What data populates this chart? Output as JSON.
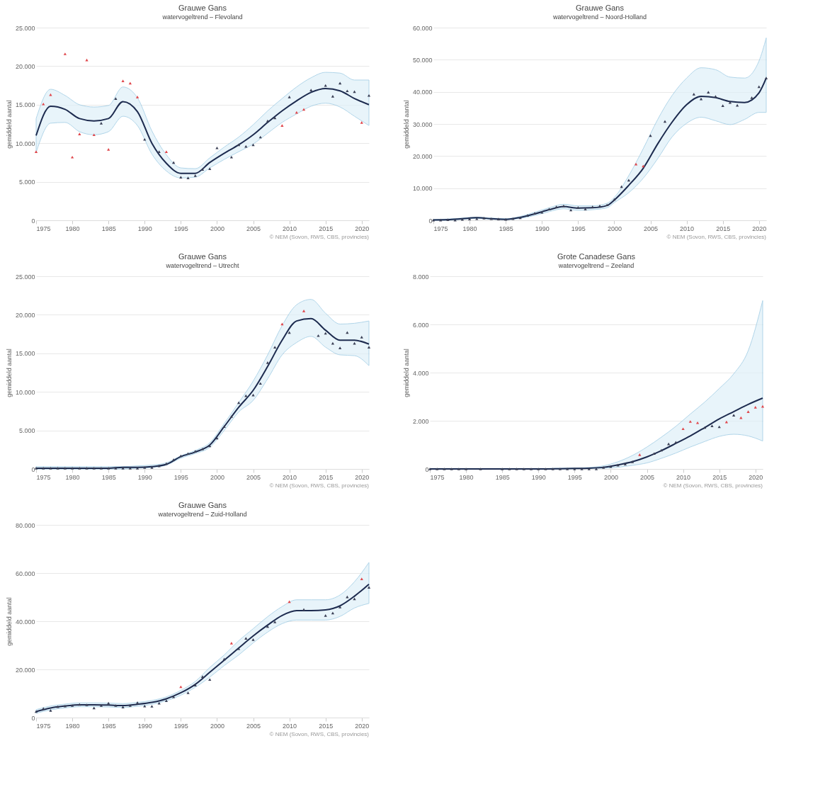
{
  "chart_data": [
    {
      "type": "line",
      "title": "Grauwe Gans",
      "subtitle": "watervogeltrend – Flevoland",
      "ylabel": "gemiddeld aantal",
      "annotations": [
        "© NEM (Sovon, RWS, CBS, provincies)"
      ],
      "grid": "y",
      "x": [
        1975,
        1976,
        1977,
        1978,
        1979,
        1980,
        1981,
        1982,
        1983,
        1984,
        1985,
        1986,
        1987,
        1988,
        1989,
        1990,
        1991,
        1992,
        1993,
        1994,
        1995,
        1996,
        1997,
        1998,
        1999,
        2000,
        2001,
        2002,
        2003,
        2004,
        2005,
        2006,
        2007,
        2008,
        2009,
        2010,
        2011,
        2012,
        2013,
        2014,
        2015,
        2016,
        2017,
        2018,
        2019,
        2020,
        2021
      ],
      "xlim": [
        1975,
        2021
      ],
      "xticks": [
        1975,
        1980,
        1985,
        1990,
        1995,
        2000,
        2005,
        2010,
        2015,
        2020
      ],
      "ylim": [
        0,
        25000
      ],
      "yticks": [
        0,
        {
          "value": 5000,
          "label": "5.000"
        },
        {
          "value": 10000,
          "label": "10.000"
        },
        {
          "value": 15000,
          "label": "15.000"
        },
        {
          "value": 20000,
          "label": "20.000"
        },
        {
          "value": 25000,
          "label": "25.000"
        }
      ],
      "series": [
        {
          "color": "#1d2b4f",
          "x": [
            1975,
            1977,
            1979,
            1981,
            1983,
            1985,
            1987,
            1989,
            1991,
            1993,
            1995,
            1997,
            1999,
            2001,
            2003,
            2005,
            2007,
            2009,
            2011,
            2013,
            2015,
            2017,
            2019,
            2021
          ],
          "values": [
            11000,
            14800,
            14400,
            13200,
            12900,
            13200,
            15400,
            14100,
            10000,
            7400,
            6100,
            6100,
            7500,
            8700,
            9800,
            11100,
            12700,
            14200,
            15500,
            16600,
            17100,
            16800,
            15800,
            15000
          ],
          "upper": [
            13200,
            17000,
            16200,
            15000,
            14700,
            14900,
            17300,
            15900,
            11600,
            8500,
            6800,
            6700,
            8100,
            9500,
            10800,
            12400,
            14200,
            15800,
            17300,
            18500,
            19200,
            19100,
            18200,
            18200
          ],
          "lower": [
            8800,
            12600,
            12700,
            11500,
            11100,
            11500,
            13500,
            12300,
            8600,
            6400,
            5500,
            5600,
            6800,
            7900,
            8900,
            9900,
            11300,
            12700,
            13800,
            14800,
            15200,
            14700,
            13500,
            12300
          ]
        },
        {
          "type": "scatter",
          "marker": "triangle",
          "values": [
            8900,
            15100,
            16300,
            null,
            21600,
            8200,
            11200,
            20800,
            11100,
            12600,
            9200,
            15800,
            18100,
            17800,
            16000,
            10500,
            null,
            8900,
            8900,
            7500,
            5600,
            5500,
            5800,
            6600,
            6700,
            9400,
            null,
            8200,
            9800,
            9600,
            9800,
            10800,
            12900,
            13300,
            12300,
            16000,
            14000,
            14400,
            16900,
            null,
            17500,
            16100,
            17800,
            16800,
            16700,
            12700,
            16200
          ],
          "colors": [
            "#e0474c",
            "#e0474c",
            "#e0474c",
            "#3a3f55",
            "#e0474c",
            "#e0474c",
            "#e0474c",
            "#e0474c",
            "#e0474c",
            "#3a3f55",
            "#e0474c",
            "#3a3f55",
            "#e0474c",
            "#e0474c",
            "#e0474c",
            "#3a3f55",
            "#3a3f55",
            "#3a3f55",
            "#e0474c",
            "#3a3f55",
            "#3a3f55",
            "#3a3f55",
            "#3a3f55",
            "#3a3f55",
            "#3a3f55",
            "#3a3f55",
            "#3a3f55",
            "#3a3f55",
            "#3a3f55",
            "#3a3f55",
            "#3a3f55",
            "#3a3f55",
            "#3a3f55",
            "#3a3f55",
            "#e0474c",
            "#3a3f55",
            "#e0474c",
            "#e0474c",
            "#3a3f55",
            "#3a3f55",
            "#3a3f55",
            "#3a3f55",
            "#3a3f55",
            "#3a3f55",
            "#3a3f55",
            "#e0474c",
            "#3a3f55"
          ]
        }
      ]
    },
    {
      "type": "line",
      "title": "Grauwe Gans",
      "subtitle": "watervogeltrend – Noord-Holland",
      "ylabel": "gemiddeld aantal",
      "annotations": [
        "© NEM (Sovon, RWS, CBS, provincies)"
      ],
      "grid": "y",
      "x": [
        1975,
        1976,
        1977,
        1978,
        1979,
        1980,
        1981,
        1982,
        1983,
        1984,
        1985,
        1986,
        1987,
        1988,
        1989,
        1990,
        1991,
        1992,
        1993,
        1994,
        1995,
        1996,
        1997,
        1998,
        1999,
        2000,
        2001,
        2002,
        2003,
        2004,
        2005,
        2006,
        2007,
        2008,
        2009,
        2010,
        2011,
        2012,
        2013,
        2014,
        2015,
        2016,
        2017,
        2018,
        2019,
        2020,
        2021
      ],
      "xlim": [
        1975,
        2021
      ],
      "xticks": [
        1975,
        1980,
        1985,
        1990,
        1995,
        2000,
        2005,
        2010,
        2015,
        2020
      ],
      "ylim": [
        0,
        60000
      ],
      "yticks": [
        0,
        {
          "value": 10000,
          "label": "10.000"
        },
        {
          "value": 20000,
          "label": "20.000"
        },
        {
          "value": 30000,
          "label": "30.000"
        },
        {
          "value": 40000,
          "label": "40.000"
        },
        {
          "value": 50000,
          "label": "50.000"
        },
        {
          "value": 60000,
          "label": "60.000"
        }
      ],
      "series": [
        {
          "color": "#1d2b4f",
          "x": [
            1975,
            1977,
            1979,
            1981,
            1983,
            1985,
            1987,
            1989,
            1991,
            1993,
            1995,
            1997,
            1999,
            2000,
            2002,
            2004,
            2006,
            2008,
            2010,
            2012,
            2014,
            2016,
            2018,
            2020,
            2021
          ],
          "values": [
            100,
            200,
            500,
            800,
            500,
            300,
            900,
            2000,
            3300,
            4300,
            3800,
            3900,
            4600,
            6300,
            10900,
            16200,
            23800,
            30600,
            36000,
            38600,
            38200,
            37000,
            36700,
            39700,
            44300
          ],
          "upper": [
            300,
            400,
            700,
            1000,
            700,
            500,
            1200,
            2500,
            3900,
            5000,
            4500,
            4500,
            5300,
            7100,
            13900,
            22300,
            31400,
            38900,
            44300,
            47500,
            46900,
            44600,
            44300,
            49600,
            56800
          ],
          "lower": [
            0,
            0,
            300,
            600,
            300,
            200,
            600,
            1500,
            2700,
            3600,
            3100,
            3300,
            3900,
            5500,
            8600,
            13100,
            19200,
            26000,
            30200,
            32100,
            31000,
            29800,
            31400,
            33600,
            33600
          ]
        },
        {
          "type": "scatter",
          "marker": "triangle",
          "values": [
            100,
            100,
            200,
            100,
            300,
            400,
            500,
            700,
            500,
            400,
            300,
            500,
            800,
            1500,
            2200,
            2500,
            3500,
            4200,
            4500,
            3200,
            4000,
            3500,
            4200,
            4500,
            4800,
            6500,
            10500,
            12500,
            17500,
            16900,
            26400,
            null,
            30800,
            null,
            null,
            null,
            39300,
            37800,
            39900,
            38600,
            35700,
            36700,
            35800,
            null,
            38200,
            41600,
            44300
          ],
          "colors": [
            "#3a3f55",
            "#3a3f55",
            "#3a3f55",
            "#3a3f55",
            "#3a3f55",
            "#3a3f55",
            "#3a3f55",
            "#3a3f55",
            "#3a3f55",
            "#3a3f55",
            "#3a3f55",
            "#3a3f55",
            "#3a3f55",
            "#3a3f55",
            "#3a3f55",
            "#3a3f55",
            "#3a3f55",
            "#3a3f55",
            "#3a3f55",
            "#3a3f55",
            "#3a3f55",
            "#3a3f55",
            "#3a3f55",
            "#3a3f55",
            "#3a3f55",
            "#3a3f55",
            "#3a3f55",
            "#3a3f55",
            "#e0474c",
            "#e0474c",
            "#3a3f55",
            "#3a3f55",
            "#3a3f55",
            "#3a3f55",
            "#3a3f55",
            "#3a3f55",
            "#3a3f55",
            "#3a3f55",
            "#3a3f55",
            "#3a3f55",
            "#3a3f55",
            "#3a3f55",
            "#3a3f55",
            "#3a3f55",
            "#3a3f55",
            "#3a3f55",
            "#3a3f55"
          ]
        }
      ]
    },
    {
      "type": "line",
      "title": "Grauwe Gans",
      "subtitle": "watervogeltrend – Utrecht",
      "ylabel": "gemiddeld aantal",
      "annotations": [
        "© NEM (Sovon, RWS, CBS, provincies)"
      ],
      "grid": "y",
      "x": [
        1975,
        1976,
        1977,
        1978,
        1979,
        1980,
        1981,
        1982,
        1983,
        1984,
        1985,
        1986,
        1987,
        1988,
        1989,
        1990,
        1991,
        1992,
        1993,
        1994,
        1995,
        1996,
        1997,
        1998,
        1999,
        2000,
        2001,
        2002,
        2003,
        2004,
        2005,
        2006,
        2007,
        2008,
        2009,
        2010,
        2011,
        2012,
        2013,
        2014,
        2015,
        2016,
        2017,
        2018,
        2019,
        2020,
        2021
      ],
      "xlim": [
        1975,
        2021
      ],
      "xticks": [
        1975,
        1980,
        1985,
        1990,
        1995,
        2000,
        2005,
        2010,
        2015,
        2020
      ],
      "ylim": [
        0,
        25000
      ],
      "yticks": [
        0,
        {
          "value": 5000,
          "label": "5.000"
        },
        {
          "value": 10000,
          "label": "10.000"
        },
        {
          "value": 15000,
          "label": "15.000"
        },
        {
          "value": 20000,
          "label": "20.000"
        },
        {
          "value": 25000,
          "label": "25.000"
        }
      ],
      "series": [
        {
          "color": "#1d2b4f",
          "x": [
            1975,
            1977,
            1979,
            1981,
            1983,
            1985,
            1987,
            1989,
            1991,
            1993,
            1995,
            1997,
            1999,
            2001,
            2003,
            2005,
            2007,
            2009,
            2011,
            2013,
            2015,
            2017,
            2019,
            2021
          ],
          "values": [
            100,
            100,
            100,
            100,
            100,
            100,
            200,
            200,
            300,
            600,
            1600,
            2200,
            3100,
            5500,
            8000,
            10200,
            13300,
            16700,
            19200,
            19500,
            18000,
            16700,
            16700,
            16200
          ],
          "upper": [
            300,
            300,
            300,
            300,
            300,
            300,
            300,
            400,
            500,
            800,
            1700,
            2400,
            3400,
            5900,
            8600,
            11400,
            14800,
            18600,
            21300,
            22000,
            20200,
            18800,
            18900,
            19200
          ],
          "lower": [
            0,
            0,
            0,
            0,
            0,
            0,
            0,
            100,
            200,
            500,
            1400,
            2000,
            2800,
            5000,
            7400,
            8900,
            11700,
            14800,
            16400,
            17200,
            15800,
            14800,
            14700,
            13400
          ]
        },
        {
          "type": "scatter",
          "marker": "triangle",
          "values": [
            100,
            100,
            100,
            100,
            100,
            100,
            100,
            100,
            100,
            100,
            100,
            100,
            100,
            100,
            100,
            200,
            200,
            400,
            700,
            1200,
            1700,
            2000,
            2300,
            2600,
            3000,
            4000,
            5500,
            6800,
            8600,
            9500,
            9600,
            11100,
            13800,
            15800,
            18800,
            17700,
            null,
            20500,
            null,
            17300,
            17600,
            16300,
            15700,
            17700,
            16300,
            17100,
            15800
          ],
          "colors": [
            "#3a3f55",
            "#3a3f55",
            "#3a3f55",
            "#3a3f55",
            "#3a3f55",
            "#3a3f55",
            "#3a3f55",
            "#3a3f55",
            "#3a3f55",
            "#3a3f55",
            "#3a3f55",
            "#3a3f55",
            "#3a3f55",
            "#3a3f55",
            "#3a3f55",
            "#3a3f55",
            "#3a3f55",
            "#3a3f55",
            "#3a3f55",
            "#3a3f55",
            "#3a3f55",
            "#3a3f55",
            "#3a3f55",
            "#3a3f55",
            "#3a3f55",
            "#3a3f55",
            "#3a3f55",
            "#3a3f55",
            "#3a3f55",
            "#3a3f55",
            "#3a3f55",
            "#3a3f55",
            "#3a3f55",
            "#3a3f55",
            "#e0474c",
            "#3a3f55",
            "#3a3f55",
            "#e0474c",
            "#3a3f55",
            "#3a3f55",
            "#3a3f55",
            "#3a3f55",
            "#3a3f55",
            "#3a3f55",
            "#3a3f55",
            "#3a3f55",
            "#3a3f55"
          ]
        }
      ]
    },
    {
      "type": "line",
      "title": "Grote Canadese Gans",
      "subtitle": "watervogeltrend – Zeeland",
      "ylabel": "gemiddeld aantal",
      "annotations": [
        "© NEM (Sovon, RWS, CBS, provincies)"
      ],
      "grid": "y",
      "x": [
        1975,
        1976,
        1977,
        1978,
        1979,
        1980,
        1981,
        1982,
        1983,
        1984,
        1985,
        1986,
        1987,
        1988,
        1989,
        1990,
        1991,
        1992,
        1993,
        1994,
        1995,
        1996,
        1997,
        1998,
        1999,
        2000,
        2001,
        2002,
        2003,
        2004,
        2005,
        2006,
        2007,
        2008,
        2009,
        2010,
        2011,
        2012,
        2013,
        2014,
        2015,
        2016,
        2017,
        2018,
        2019,
        2020,
        2021
      ],
      "xlim": [
        1975,
        2021
      ],
      "xticks": [
        1975,
        1980,
        1985,
        1990,
        1995,
        2000,
        2005,
        2010,
        2015,
        2020
      ],
      "ylim": [
        0,
        8000
      ],
      "yticks": [
        0,
        {
          "value": 2000,
          "label": "2.000"
        },
        {
          "value": 4000,
          "label": "4.000"
        },
        {
          "value": 6000,
          "label": "6.000"
        },
        {
          "value": 8000,
          "label": "8.000"
        }
      ],
      "series": [
        {
          "color": "#1d2b4f",
          "x": [
            1975,
            1977,
            1979,
            1981,
            1983,
            1985,
            1987,
            1989,
            1991,
            1993,
            1995,
            1997,
            1999,
            2001,
            2003,
            2005,
            2007,
            2009,
            2011,
            2013,
            2015,
            2017,
            2019,
            2021
          ],
          "values": [
            0,
            0,
            0,
            0,
            0,
            0,
            0,
            0,
            0,
            10,
            20,
            30,
            70,
            170,
            300,
            500,
            760,
            1060,
            1370,
            1720,
            2080,
            2380,
            2680,
            2940
          ],
          "upper": [
            20,
            20,
            20,
            20,
            20,
            20,
            20,
            20,
            20,
            30,
            40,
            60,
            130,
            300,
            560,
            910,
            1320,
            1770,
            2280,
            2780,
            3340,
            3950,
            4910,
            6990
          ],
          "lower": [
            0,
            0,
            0,
            0,
            0,
            0,
            0,
            0,
            0,
            0,
            10,
            20,
            30,
            70,
            150,
            250,
            440,
            660,
            910,
            1140,
            1350,
            1440,
            1370,
            1160
          ]
        },
        {
          "type": "scatter",
          "marker": "triangle",
          "values": [
            0,
            0,
            0,
            0,
            0,
            0,
            null,
            0,
            null,
            null,
            0,
            0,
            0,
            0,
            0,
            0,
            0,
            0,
            0,
            0,
            0,
            0,
            0,
            0,
            60,
            100,
            160,
            200,
            300,
            590,
            null,
            640,
            780,
            1040,
            1110,
            1670,
            1970,
            1920,
            1720,
            1790,
            1750,
            1950,
            2230,
            2130,
            2380,
            2560,
            2600
          ],
          "colors": [
            "#3a3f55",
            "#3a3f55",
            "#3a3f55",
            "#3a3f55",
            "#3a3f55",
            "#3a3f55",
            "#3a3f55",
            "#3a3f55",
            "#3a3f55",
            "#3a3f55",
            "#3a3f55",
            "#3a3f55",
            "#3a3f55",
            "#3a3f55",
            "#3a3f55",
            "#3a3f55",
            "#3a3f55",
            "#3a3f55",
            "#3a3f55",
            "#3a3f55",
            "#3a3f55",
            "#3a3f55",
            "#3a3f55",
            "#3a3f55",
            "#3a3f55",
            "#3a3f55",
            "#3a3f55",
            "#3a3f55",
            "#3a3f55",
            "#e0474c",
            "#3a3f55",
            "#3a3f55",
            "#3a3f55",
            "#3a3f55",
            "#3a3f55",
            "#e0474c",
            "#e0474c",
            "#e0474c",
            "#3a3f55",
            "#3a3f55",
            "#3a3f55",
            "#e0474c",
            "#3a3f55",
            "#e0474c",
            "#e0474c",
            "#e0474c",
            "#e0474c"
          ]
        }
      ]
    },
    {
      "type": "line",
      "title": "Grauwe Gans",
      "subtitle": "watervogeltrend – Zuid-Holland",
      "ylabel": "gemiddeld aantal",
      "annotations": [
        "© NEM (Sovon, RWS, CBS, provincies)"
      ],
      "grid": "y",
      "x": [
        1975,
        1976,
        1977,
        1978,
        1979,
        1980,
        1981,
        1982,
        1983,
        1984,
        1985,
        1986,
        1987,
        1988,
        1989,
        1990,
        1991,
        1992,
        1993,
        1994,
        1995,
        1996,
        1997,
        1998,
        1999,
        2000,
        2001,
        2002,
        2003,
        2004,
        2005,
        2006,
        2007,
        2008,
        2009,
        2010,
        2011,
        2012,
        2013,
        2014,
        2015,
        2016,
        2017,
        2018,
        2019,
        2020,
        2021
      ],
      "xlim": [
        1975,
        2021
      ],
      "xticks": [
        1975,
        1980,
        1985,
        1990,
        1995,
        2000,
        2005,
        2010,
        2015,
        2020
      ],
      "ylim": [
        0,
        80000
      ],
      "yticks": [
        0,
        {
          "value": 20000,
          "label": "20.000"
        },
        {
          "value": 40000,
          "label": "40.000"
        },
        {
          "value": 60000,
          "label": "60.000"
        },
        {
          "value": 80000,
          "label": "80.000"
        }
      ],
      "series": [
        {
          "color": "#1d2b4f",
          "x": [
            1975,
            1977,
            1979,
            1981,
            1983,
            1985,
            1987,
            1989,
            1991,
            1993,
            1995,
            1997,
            1999,
            2001,
            2003,
            2005,
            2007,
            2009,
            2011,
            2013,
            2015,
            2017,
            2019,
            2021
          ],
          "values": [
            2500,
            4000,
            4800,
            5300,
            5300,
            5200,
            5000,
            5500,
            6300,
            7800,
            10300,
            13800,
            18800,
            23800,
            28900,
            33900,
            38400,
            42400,
            44400,
            44400,
            44700,
            46400,
            50400,
            55400
          ],
          "upper": [
            3300,
            4800,
            5600,
            6100,
            6100,
            6000,
            5800,
            6300,
            7100,
            8600,
            11300,
            15000,
            20800,
            26000,
            31900,
            36900,
            41900,
            46100,
            48900,
            48900,
            48900,
            50900,
            56400,
            64400
          ],
          "lower": [
            1800,
            3200,
            4000,
            4500,
            4500,
            4400,
            4200,
            4700,
            5500,
            7000,
            9300,
            12600,
            16800,
            21600,
            26000,
            31000,
            35500,
            39000,
            40500,
            40500,
            40500,
            42000,
            45500,
            47400
          ]
        },
        {
          "type": "scatter",
          "marker": "triangle",
          "values": [
            2500,
            3800,
            3000,
            4500,
            4800,
            5000,
            5500,
            5300,
            4000,
            5000,
            6000,
            5000,
            4400,
            5000,
            6200,
            4800,
            4700,
            6000,
            7000,
            8600,
            12800,
            10300,
            13500,
            17000,
            15800,
            null,
            24300,
            30900,
            28600,
            32900,
            32400,
            null,
            37800,
            39700,
            null,
            48100,
            null,
            44900,
            null,
            null,
            42400,
            43400,
            45900,
            50100,
            49300,
            57600,
            54100
          ],
          "colors": [
            "#3a3f55",
            "#3a3f55",
            "#3a3f55",
            "#3a3f55",
            "#3a3f55",
            "#3a3f55",
            "#3a3f55",
            "#3a3f55",
            "#3a3f55",
            "#3a3f55",
            "#3a3f55",
            "#3a3f55",
            "#3a3f55",
            "#3a3f55",
            "#3a3f55",
            "#3a3f55",
            "#3a3f55",
            "#3a3f55",
            "#3a3f55",
            "#3a3f55",
            "#e0474c",
            "#3a3f55",
            "#3a3f55",
            "#3a3f55",
            "#3a3f55",
            "#3a3f55",
            "#3a3f55",
            "#e0474c",
            "#3a3f55",
            "#3a3f55",
            "#3a3f55",
            "#3a3f55",
            "#3a3f55",
            "#3a3f55",
            "#3a3f55",
            "#e0474c",
            "#3a3f55",
            "#3a3f55",
            "#3a3f55",
            "#3a3f55",
            "#3a3f55",
            "#3a3f55",
            "#3a3f55",
            "#3a3f55",
            "#3a3f55",
            "#e0474c",
            "#3a3f55"
          ]
        }
      ]
    }
  ]
}
